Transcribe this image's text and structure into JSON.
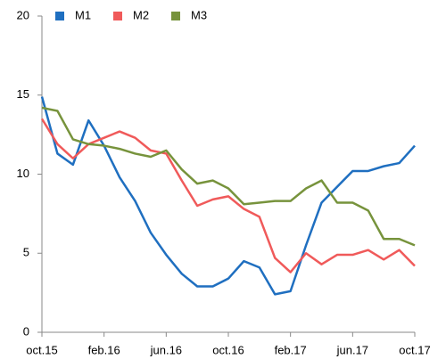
{
  "chart_data": {
    "type": "line",
    "categories": [
      "oct.15",
      null,
      null,
      null,
      "feb.16",
      null,
      null,
      null,
      "jun.16",
      null,
      null,
      null,
      "oct.16",
      null,
      null,
      null,
      "feb.17",
      null,
      null,
      null,
      "jun.17",
      null,
      null,
      null,
      "oct.17"
    ],
    "series": [
      {
        "name": "M1",
        "color": "#1f6fc0",
        "values": [
          14.9,
          11.3,
          10.6,
          13.4,
          11.8,
          9.8,
          8.3,
          6.3,
          4.9,
          3.7,
          2.9,
          2.9,
          3.4,
          4.5,
          4.1,
          2.4,
          2.6,
          5.5,
          8.2,
          9.2,
          10.2,
          10.2,
          10.5,
          10.7,
          11.8
        ]
      },
      {
        "name": "M2",
        "color": "#f05a5a",
        "values": [
          13.5,
          11.9,
          11.0,
          11.9,
          12.3,
          12.7,
          12.3,
          11.5,
          11.3,
          9.6,
          8.0,
          8.4,
          8.6,
          7.8,
          7.3,
          4.7,
          3.8,
          5.0,
          4.3,
          4.9,
          4.9,
          5.2,
          4.6,
          5.2,
          4.2
        ]
      },
      {
        "name": "M3",
        "color": "#77933c",
        "values": [
          14.2,
          14.0,
          12.2,
          11.9,
          11.8,
          11.6,
          11.3,
          11.1,
          11.5,
          10.3,
          9.4,
          9.6,
          9.1,
          8.1,
          8.2,
          8.3,
          8.3,
          9.1,
          9.6,
          8.2,
          8.2,
          7.7,
          5.9,
          5.9,
          5.5
        ]
      }
    ],
    "ylim": [
      0,
      20
    ],
    "yticks": [
      0,
      5,
      10,
      15,
      20
    ],
    "grid": false
  }
}
